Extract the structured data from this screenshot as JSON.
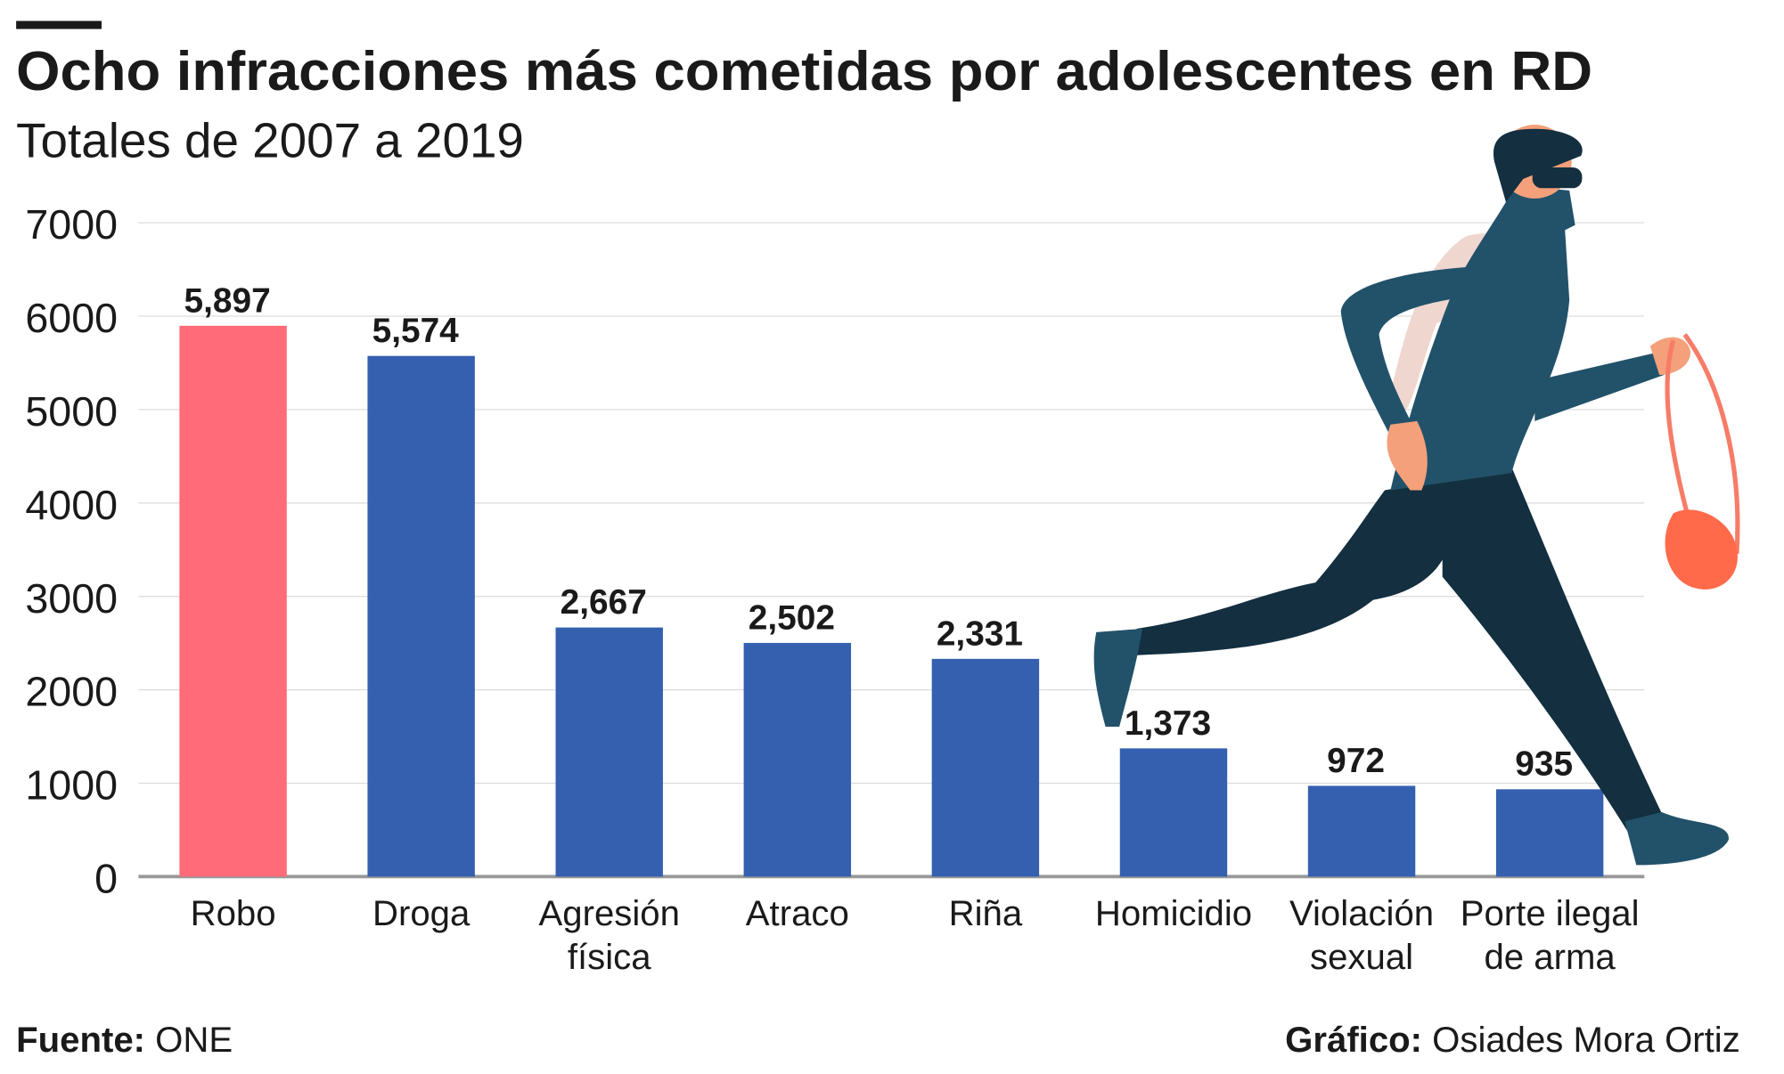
{
  "chart_data": {
    "type": "bar",
    "title": "Ocho infracciones más cometidas por adolescentes en RD",
    "subtitle": "Totales de 2007 a 2019",
    "categories": [
      "Robo",
      "Droga",
      "Agresión física",
      "Atraco",
      "Riña",
      "Homicidio",
      "Violación sexual",
      "Porte ilegal de arma"
    ],
    "values": [
      5897,
      5574,
      2667,
      2502,
      2331,
      1373,
      972,
      935
    ],
    "value_labels": [
      "5,897",
      "5,574",
      "2,667",
      "2,502",
      "2,331",
      "1,373",
      "972",
      "935"
    ],
    "colors": [
      "#ff6b78",
      "#3560b0",
      "#3560b0",
      "#3560b0",
      "#3560b0",
      "#3560b0",
      "#3560b0",
      "#3560b0"
    ],
    "ylim": [
      0,
      7000
    ],
    "yticks": [
      0,
      1000,
      2000,
      3000,
      4000,
      5000,
      6000,
      7000
    ],
    "grid": true,
    "source_label": "Fuente:",
    "source": "ONE",
    "credit_label": "Gráfico:",
    "credit": "Osiades Mora Ortiz"
  }
}
